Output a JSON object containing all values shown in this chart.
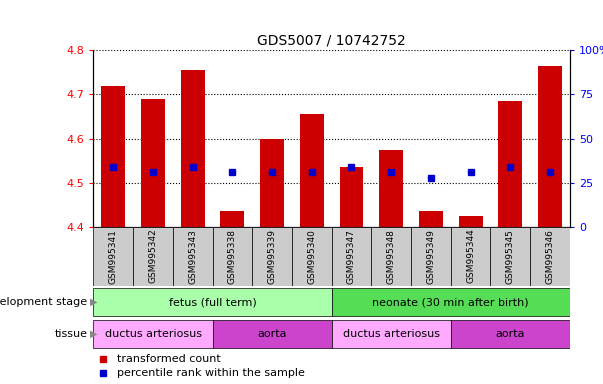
{
  "title": "GDS5007 / 10742752",
  "samples": [
    "GSM995341",
    "GSM995342",
    "GSM995343",
    "GSM995338",
    "GSM995339",
    "GSM995340",
    "GSM995347",
    "GSM995348",
    "GSM995349",
    "GSM995344",
    "GSM995345",
    "GSM995346"
  ],
  "bar_tops": [
    4.72,
    4.69,
    4.755,
    4.435,
    4.6,
    4.655,
    4.535,
    4.575,
    4.435,
    4.425,
    4.685,
    4.765
  ],
  "bar_bottoms": [
    4.4,
    4.4,
    4.4,
    4.4,
    4.4,
    4.4,
    4.4,
    4.4,
    4.4,
    4.4,
    4.4,
    4.4
  ],
  "blue_y": [
    4.535,
    4.525,
    4.535,
    4.525,
    4.525,
    4.525,
    4.535,
    4.525,
    4.51,
    4.525,
    4.535,
    4.525
  ],
  "ylim_left": [
    4.4,
    4.8
  ],
  "ylim_right": [
    0,
    100
  ],
  "yticks_left": [
    4.4,
    4.5,
    4.6,
    4.7,
    4.8
  ],
  "yticks_right": [
    0,
    25,
    50,
    75,
    100
  ],
  "bar_color": "#cc0000",
  "blue_color": "#0000cc",
  "dev_stage_groups": [
    {
      "label": "fetus (full term)",
      "start": 0,
      "end": 5,
      "color": "#aaffaa"
    },
    {
      "label": "neonate (30 min after birth)",
      "start": 6,
      "end": 11,
      "color": "#55dd55"
    }
  ],
  "tissue_groups": [
    {
      "label": "ductus arteriosus",
      "start": 0,
      "end": 2,
      "color": "#ffaaff"
    },
    {
      "label": "aorta",
      "start": 3,
      "end": 5,
      "color": "#cc44cc"
    },
    {
      "label": "ductus arteriosus",
      "start": 6,
      "end": 8,
      "color": "#ffaaff"
    },
    {
      "label": "aorta",
      "start": 9,
      "end": 11,
      "color": "#cc44cc"
    }
  ],
  "legend_items": [
    {
      "label": "transformed count",
      "color": "#cc0000"
    },
    {
      "label": "percentile rank within the sample",
      "color": "#0000cc"
    }
  ],
  "dev_stage_label": "development stage",
  "tissue_label": "tissue",
  "bar_width": 0.6,
  "grid_color": "black",
  "grid_linestyle": "dotted",
  "background_color": "white",
  "tick_label_bg": "#cccccc",
  "left_label_color": "black",
  "left_arrow_color": "#888888"
}
